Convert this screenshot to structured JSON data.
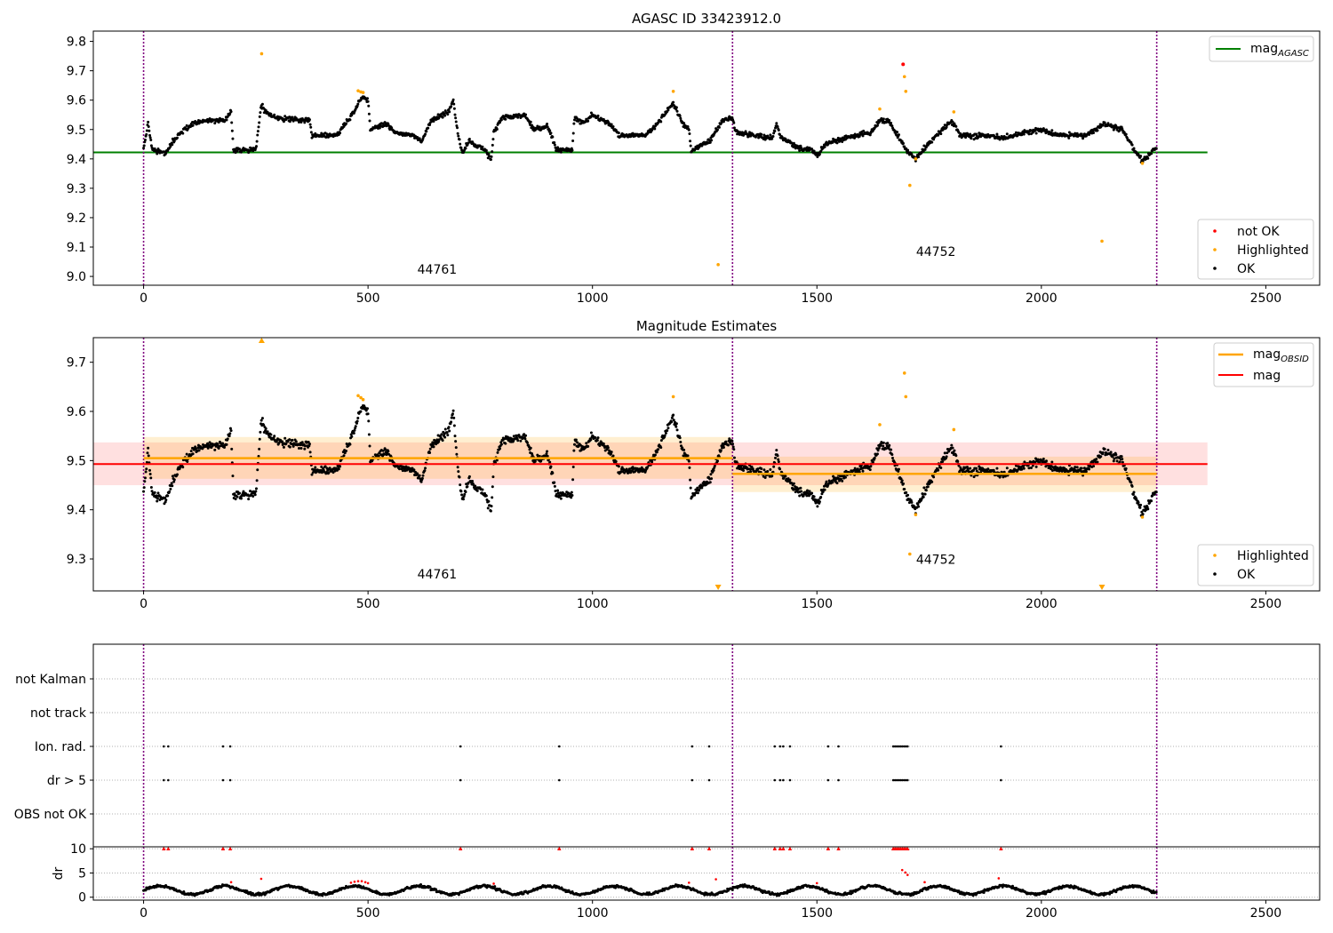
{
  "chart_data": [
    {
      "type": "scatter",
      "title": "AGASC ID 33423912.0",
      "xlim": [
        -112,
        2620
      ],
      "ylim": [
        8.97,
        9.835
      ],
      "xticks": [
        0,
        500,
        1000,
        1500,
        2000,
        2500
      ],
      "xtick_labels": [
        "0",
        "500",
        "1000",
        "1500",
        "2000",
        "2500"
      ],
      "yticks": [
        9.0,
        9.1,
        9.2,
        9.3,
        9.4,
        9.5,
        9.6,
        9.7,
        9.8
      ],
      "ytick_labels": [
        "9.0",
        "9.1",
        "9.2",
        "9.3",
        "9.4",
        "9.5",
        "9.6",
        "9.7",
        "9.8"
      ],
      "reference_line": {
        "name": "mag_AGASC",
        "label_base": "mag",
        "label_sub": "AGASC",
        "y": 9.422,
        "x": [
          -112,
          2370
        ],
        "color": "#008000"
      },
      "obsid_boundaries": [
        0,
        1312,
        2257
      ],
      "obsid_boundary_color": "#800080",
      "obsid_labels": [
        {
          "text": "44761",
          "x": 654,
          "y": 9.01
        },
        {
          "text": "44752",
          "x": 1765,
          "y": 9.07
        }
      ],
      "legend_upper": {
        "position": "upper right",
        "entries": [
          {
            "label_base": "mag",
            "label_sub": "AGASC",
            "color": "#008000",
            "marker": "line"
          }
        ]
      },
      "legend_lower": {
        "position": "lower right",
        "entries": [
          {
            "label": "not OK",
            "color": "#ff0000",
            "marker": "dot"
          },
          {
            "label": "Highlighted",
            "color": "#ffa500",
            "marker": "dot"
          },
          {
            "label": "OK",
            "color": "#000000",
            "marker": "dot"
          }
        ]
      },
      "highlighted_points": [
        [
          263,
          9.758
        ],
        [
          478,
          9.632
        ],
        [
          484,
          9.628
        ],
        [
          489,
          9.626
        ],
        [
          1180,
          9.63
        ],
        [
          1280,
          9.04
        ],
        [
          1640,
          9.57
        ],
        [
          1695,
          9.68
        ],
        [
          1698,
          9.63
        ],
        [
          1707,
          9.31
        ],
        [
          1720,
          9.4
        ],
        [
          1805,
          9.56
        ],
        [
          2135,
          9.12
        ],
        [
          2225,
          9.385
        ]
      ],
      "not_ok_points": [
        [
          1692,
          9.722
        ]
      ]
    },
    {
      "type": "scatter",
      "title": "Magnitude Estimates",
      "xlim": [
        -112,
        2620
      ],
      "ylim": [
        9.235,
        9.75
      ],
      "xticks": [
        0,
        500,
        1000,
        1500,
        2000,
        2500
      ],
      "xtick_labels": [
        "0",
        "500",
        "1000",
        "1500",
        "2000",
        "2500"
      ],
      "yticks": [
        9.3,
        9.4,
        9.5,
        9.6,
        9.7
      ],
      "ytick_labels": [
        "9.3",
        "9.4",
        "9.5",
        "9.6",
        "9.7"
      ],
      "mag": {
        "y": 9.493,
        "band": [
          9.45,
          9.537
        ],
        "x": [
          -112,
          2370
        ],
        "color": "#ff0000"
      },
      "mag_obsid": [
        {
          "x": [
            0,
            1312
          ],
          "y": 9.505,
          "band": [
            9.463,
            9.548
          ]
        },
        {
          "x": [
            1312,
            2257
          ],
          "y": 9.473,
          "band": [
            9.436,
            9.508
          ]
        }
      ],
      "mag_obsid_color": "#ffa500",
      "obsid_boundaries": [
        0,
        1312,
        2257
      ],
      "obsid_labels": [
        {
          "text": "44761",
          "x": 654,
          "y": 9.26
        },
        {
          "text": "44752",
          "x": 1765,
          "y": 9.29
        }
      ],
      "legend_upper": {
        "position": "upper right",
        "entries": [
          {
            "label_base": "mag",
            "label_sub": "OBSID",
            "color": "#ffa500",
            "marker": "line"
          },
          {
            "label": "mag",
            "color": "#ff0000",
            "marker": "line"
          }
        ]
      },
      "legend_lower": {
        "position": "lower right",
        "entries": [
          {
            "label": "Highlighted",
            "color": "#ffa500",
            "marker": "dot"
          },
          {
            "label": "OK",
            "color": "#000000",
            "marker": "dot"
          }
        ]
      },
      "highlighted_points": [
        [
          478,
          9.632
        ],
        [
          484,
          9.628
        ],
        [
          489,
          9.624
        ],
        [
          1180,
          9.63
        ],
        [
          1640,
          9.573
        ],
        [
          1695,
          9.678
        ],
        [
          1698,
          9.63
        ],
        [
          1707,
          9.31
        ],
        [
          1720,
          9.39
        ],
        [
          1805,
          9.563
        ],
        [
          2225,
          9.385
        ]
      ],
      "highlighted_off_scale": [
        {
          "x": 263,
          "dir": "up"
        },
        {
          "x": 1280,
          "dir": "down"
        },
        {
          "x": 2135,
          "dir": "down"
        }
      ]
    },
    {
      "type": "scatter",
      "title": "",
      "xlim": [
        -112,
        2620
      ],
      "categories": [
        "not Kalman",
        "not track",
        "Ion. rad.",
        "dr > 5",
        "OBS not OK"
      ],
      "obsid_boundaries": [
        0,
        1312,
        2257
      ],
      "flag_x": {
        "Ion. rad.": [
          45,
          55,
          177,
          193,
          706,
          926,
          1222,
          1260,
          1406,
          1418,
          1425,
          1440,
          1525,
          1548,
          1670,
          1674,
          1678,
          1682,
          1686,
          1690,
          1694,
          1698,
          1702,
          1910
        ],
        "dr > 5": [
          45,
          55,
          177,
          193,
          706,
          926,
          1222,
          1260,
          1406,
          1418,
          1425,
          1440,
          1525,
          1548,
          1670,
          1674,
          1678,
          1682,
          1686,
          1690,
          1694,
          1698,
          1702,
          1910
        ]
      }
    },
    {
      "type": "scatter",
      "title": "",
      "ylabel": "dr",
      "xlim": [
        -112,
        2620
      ],
      "ylim": [
        -0.6,
        10.4
      ],
      "xticks": [
        0,
        500,
        1000,
        1500,
        2000,
        2500
      ],
      "xtick_labels": [
        "0",
        "500",
        "1000",
        "1500",
        "2000",
        "2500"
      ],
      "yticks": [
        0,
        5,
        10
      ],
      "ytick_labels": [
        "0",
        "5",
        "10"
      ],
      "obsid_boundaries": [
        0,
        1312,
        2257
      ],
      "clipped_points_x": [
        45,
        55,
        177,
        193,
        706,
        926,
        1222,
        1260,
        1406,
        1418,
        1425,
        1440,
        1525,
        1548,
        1670,
        1674,
        1678,
        1682,
        1686,
        1690,
        1694,
        1698,
        1702,
        1910
      ],
      "red_points": [
        [
          195,
          3.1
        ],
        [
          262,
          3.8
        ],
        [
          462,
          3.0
        ],
        [
          470,
          3.2
        ],
        [
          478,
          3.3
        ],
        [
          486,
          3.3
        ],
        [
          494,
          3.1
        ],
        [
          500,
          2.9
        ],
        [
          780,
          2.8
        ],
        [
          1215,
          3.0
        ],
        [
          1275,
          3.7
        ],
        [
          1500,
          2.9
        ],
        [
          1690,
          5.6
        ],
        [
          1697,
          5.1
        ],
        [
          1702,
          4.6
        ],
        [
          1740,
          3.1
        ],
        [
          1905,
          3.9
        ]
      ]
    }
  ]
}
